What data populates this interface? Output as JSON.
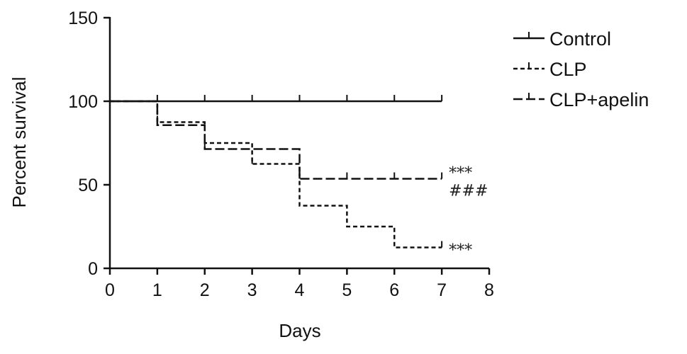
{
  "chart_data": {
    "type": "line",
    "title": "",
    "xlabel": "Days",
    "ylabel": "Percent survival",
    "xlim": [
      0,
      8
    ],
    "ylim": [
      0,
      150
    ],
    "x_ticks": [
      0,
      1,
      2,
      3,
      4,
      5,
      6,
      7,
      8
    ],
    "y_ticks": [
      0,
      50,
      100,
      150
    ],
    "grid": false,
    "legend_position": "top-right",
    "series": [
      {
        "name": "Control",
        "style": "solid",
        "x": [
          0,
          1,
          2,
          3,
          4,
          5,
          6,
          7
        ],
        "y": [
          100,
          100,
          100,
          100,
          100,
          100,
          100,
          100
        ],
        "censor_ticks_x": [
          1,
          2,
          3,
          4,
          5,
          6,
          7
        ]
      },
      {
        "name": "CLP",
        "style": "dotted",
        "x": [
          0,
          1,
          2,
          3,
          4,
          5,
          6,
          7
        ],
        "y": [
          100,
          87.5,
          75,
          62.5,
          37.5,
          25,
          12.5,
          12.5
        ],
        "censor_ticks_x": [
          1,
          2,
          3,
          7
        ]
      },
      {
        "name": "CLP+apelin",
        "style": "dashed",
        "x": [
          0,
          1,
          2,
          3,
          4,
          5,
          6,
          7
        ],
        "y": [
          100,
          85.7,
          71.4,
          71.4,
          53.6,
          53.6,
          53.6,
          53.6
        ],
        "censor_ticks_x": [
          2,
          4,
          5,
          6,
          7
        ]
      }
    ],
    "annotations": [
      {
        "text": "***",
        "x": 7,
        "y": 53.6,
        "position": "above"
      },
      {
        "text": "###",
        "x": 7,
        "y": 53.6,
        "position": "below"
      },
      {
        "text": "***",
        "x": 7,
        "y": 12.5,
        "position": "right"
      }
    ]
  }
}
